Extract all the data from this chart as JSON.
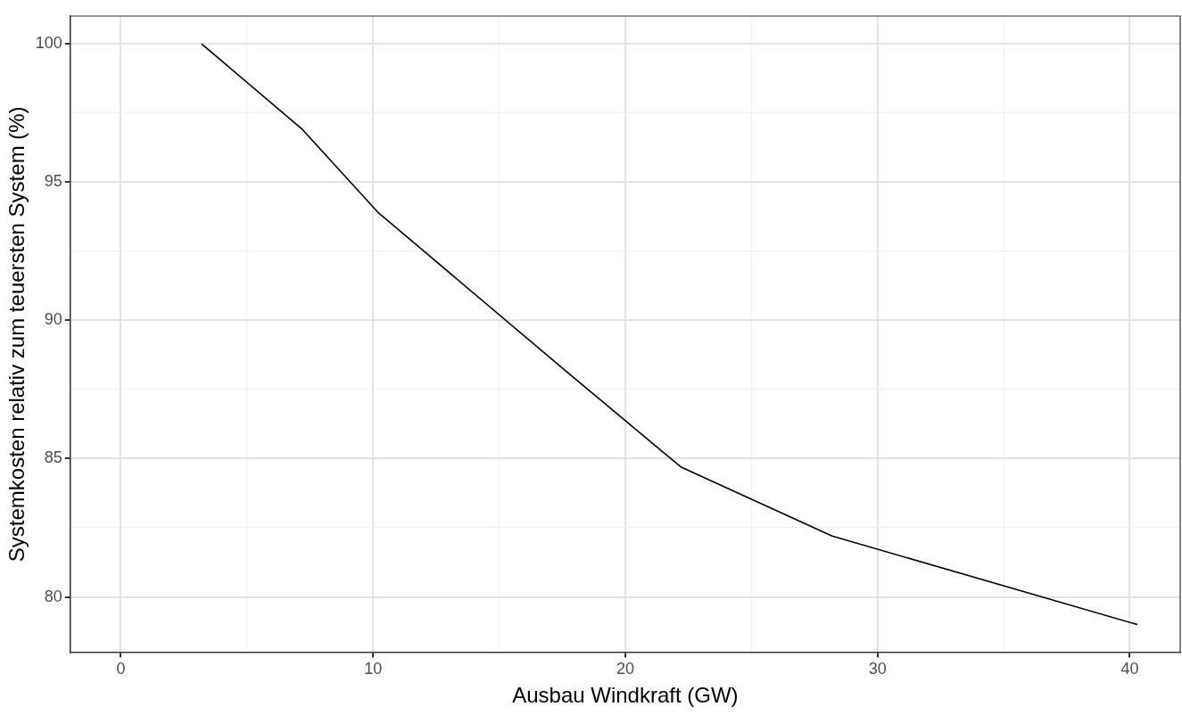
{
  "chart_data": {
    "type": "line",
    "xlabel": "Ausbau Windkraft (GW)",
    "ylabel": "Systemkosten relativ zum teuersten System (%)",
    "x": [
      3.2,
      7.2,
      10.2,
      17.6,
      22.2,
      28.2,
      40.3
    ],
    "series": [
      {
        "color": "#000000",
        "values": [
          100,
          96.9,
          93.9,
          88.2,
          84.7,
          82.2,
          79.0
        ]
      }
    ],
    "xlim": [
      -2,
      42
    ],
    "ylim": [
      78,
      101
    ],
    "xticks": [
      0,
      {
        "value": 5,
        "label": null
      },
      10,
      {
        "value": 15,
        "label": null
      },
      20,
      {
        "value": 25,
        "label": null
      },
      30,
      {
        "value": 35,
        "label": null
      },
      40
    ],
    "yticks": [
      80,
      {
        "value": 82.5,
        "label": null
      },
      85,
      {
        "value": 87.5,
        "label": null
      },
      90,
      {
        "value": 92.5,
        "label": null
      },
      95,
      {
        "value": 97.5,
        "label": null
      },
      100
    ],
    "grid": true,
    "legend": false,
    "marker": "none",
    "line_style": "solid"
  }
}
